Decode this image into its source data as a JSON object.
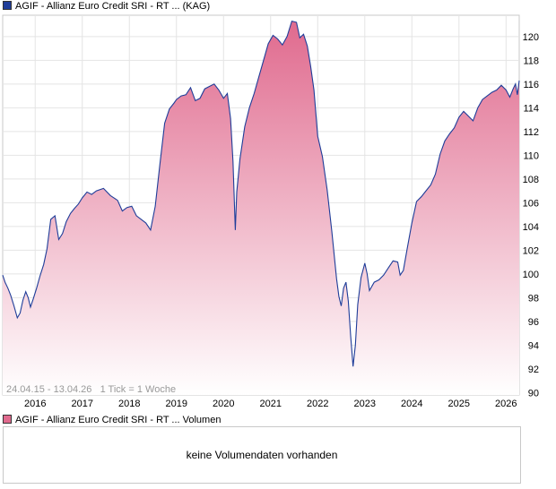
{
  "legend": {
    "price_label": "AGIF - Allianz Euro Credit SRI - RT ... (KAG)",
    "price_color": "#1f3d99",
    "volume_label": "AGIF - Allianz Euro Credit SRI - RT ... Volumen",
    "volume_color": "#e06a8e"
  },
  "chart_info": "24.04.15 - 13.04.26   1 Tick = 1 Woche",
  "volume": {
    "message": "keine Volumendaten vorhanden"
  },
  "chart_data": {
    "type": "area",
    "title": "",
    "xlabel": "",
    "ylabel": "",
    "x_ticks": [
      "2016",
      "2017",
      "2018",
      "2019",
      "2020",
      "2021",
      "2022",
      "2023",
      "2024",
      "2025",
      "2026"
    ],
    "y_ticks": [
      90,
      92,
      94,
      96,
      98,
      100,
      102,
      104,
      106,
      108,
      110,
      112,
      114,
      116,
      118,
      120
    ],
    "xlim": [
      2015.31,
      2026.28
    ],
    "ylim": [
      89.8,
      121.8
    ],
    "grid": true,
    "legend": "top-left",
    "line_color": "#1f3d99",
    "fill_top_color": "#e06a8e",
    "fill_bottom_color": "#ffffff",
    "series": [
      {
        "x": [
          2015.31,
          2015.36,
          2015.42,
          2015.48,
          2015.55,
          2015.62,
          2015.68,
          2015.74,
          2015.8,
          2015.85,
          2015.9,
          2015.96,
          2016.03,
          2016.1,
          2016.18,
          2016.25,
          2016.33,
          2016.42,
          2016.5,
          2016.58,
          2016.66,
          2016.75,
          2016.83,
          2016.92,
          2017.0,
          2017.1,
          2017.2,
          2017.3,
          2017.45,
          2017.6,
          2017.75,
          2017.85,
          2017.95,
          2018.05,
          2018.15,
          2018.25,
          2018.35,
          2018.45,
          2018.55,
          2018.65,
          2018.75,
          2018.85,
          2018.95,
          2019.0,
          2019.1,
          2019.2,
          2019.3,
          2019.4,
          2019.5,
          2019.6,
          2019.7,
          2019.8,
          2019.9,
          2020.0,
          2020.08,
          2020.15,
          2020.2,
          2020.25,
          2020.28,
          2020.35,
          2020.45,
          2020.55,
          2020.65,
          2020.75,
          2020.85,
          2020.95,
          2021.05,
          2021.15,
          2021.25,
          2021.35,
          2021.45,
          2021.55,
          2021.62,
          2021.7,
          2021.78,
          2021.85,
          2021.92,
          2022.0,
          2022.1,
          2022.2,
          2022.3,
          2022.4,
          2022.45,
          2022.5,
          2022.55,
          2022.6,
          2022.65,
          2022.7,
          2022.75,
          2022.8,
          2022.85,
          2022.92,
          2023.0,
          2023.05,
          2023.1,
          2023.2,
          2023.3,
          2023.4,
          2023.5,
          2023.6,
          2023.7,
          2023.75,
          2023.82,
          2023.9,
          2024.0,
          2024.1,
          2024.2,
          2024.3,
          2024.4,
          2024.5,
          2024.6,
          2024.7,
          2024.8,
          2024.9,
          2025.0,
          2025.1,
          2025.2,
          2025.3,
          2025.4,
          2025.5,
          2025.6,
          2025.7,
          2025.8,
          2025.9,
          2026.0,
          2026.08,
          2026.15,
          2026.2,
          2026.24,
          2026.28
        ],
        "values": [
          99.9,
          99.3,
          98.8,
          98.2,
          97.3,
          96.3,
          96.7,
          97.8,
          98.5,
          98.0,
          97.2,
          97.9,
          98.8,
          99.8,
          100.8,
          102.1,
          104.6,
          104.9,
          102.9,
          103.4,
          104.4,
          105.1,
          105.5,
          105.9,
          106.4,
          106.9,
          106.7,
          107.0,
          107.2,
          106.6,
          106.2,
          105.3,
          105.6,
          105.7,
          104.9,
          104.6,
          104.3,
          103.7,
          105.7,
          109.3,
          112.7,
          113.9,
          114.4,
          114.7,
          115.0,
          115.1,
          115.7,
          114.6,
          114.8,
          115.6,
          115.8,
          116.0,
          115.5,
          114.8,
          115.2,
          113.1,
          109.5,
          103.7,
          106.9,
          109.7,
          112.4,
          114.0,
          115.2,
          116.6,
          118.0,
          119.4,
          120.1,
          119.8,
          119.3,
          120.0,
          121.3,
          121.2,
          119.9,
          120.2,
          119.2,
          117.5,
          115.5,
          111.6,
          109.9,
          107.1,
          103.6,
          99.6,
          98.1,
          97.3,
          98.8,
          99.3,
          97.7,
          94.8,
          92.2,
          94.0,
          97.4,
          99.7,
          100.9,
          100.0,
          98.6,
          99.3,
          99.5,
          99.9,
          100.5,
          101.1,
          101.0,
          99.9,
          100.3,
          102.1,
          104.3,
          106.1,
          106.5,
          107.0,
          107.5,
          108.4,
          110.1,
          111.2,
          111.8,
          112.3,
          113.2,
          113.7,
          113.3,
          112.9,
          114.0,
          114.7,
          115.0,
          115.3,
          115.5,
          115.9,
          115.5,
          114.9,
          115.6,
          116.0,
          115.1,
          116.3
        ]
      }
    ]
  }
}
